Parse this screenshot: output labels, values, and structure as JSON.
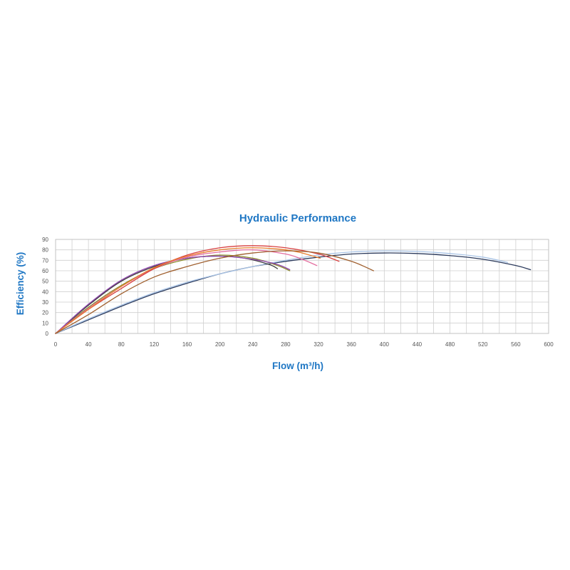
{
  "chart_data": {
    "type": "line",
    "title": "Hydraulic Performance",
    "xlabel": "Flow (m³/h)",
    "ylabel": "Efficiency (%)",
    "xlim": [
      0,
      600
    ],
    "ylim": [
      0,
      90
    ],
    "xticks": [
      0,
      40,
      80,
      120,
      160,
      200,
      240,
      280,
      320,
      360,
      400,
      440,
      480,
      520,
      560,
      600
    ],
    "yticks": [
      0,
      10,
      20,
      30,
      40,
      50,
      60,
      70,
      80,
      90
    ],
    "grid": true,
    "legend": "none",
    "series": [
      {
        "color": "#2b3a5c",
        "x": [
          0,
          40,
          80,
          120,
          160,
          200,
          240,
          280,
          320,
          360,
          400,
          440,
          480,
          520,
          560,
          578
        ],
        "y": [
          0,
          13,
          26,
          38,
          48,
          57,
          64,
          69,
          73,
          76,
          77,
          76.5,
          74.5,
          71,
          65,
          61
        ]
      },
      {
        "color": "#a9c4e6",
        "x": [
          0,
          40,
          80,
          120,
          160,
          200,
          240,
          280,
          320,
          360,
          400,
          440,
          480,
          520,
          550
        ],
        "y": [
          0,
          14,
          27,
          39,
          49,
          57,
          64,
          70,
          75,
          78,
          79,
          78.5,
          76.5,
          73,
          68
        ]
      },
      {
        "color": "#3a3a3a",
        "x": [
          0,
          40,
          80,
          120,
          160,
          200,
          230,
          260,
          270
        ],
        "y": [
          0,
          27,
          50,
          64,
          72,
          74,
          72,
          66,
          62
        ]
      },
      {
        "color": "#8b8b2a",
        "x": [
          0,
          40,
          80,
          120,
          160,
          200,
          240,
          270,
          285
        ],
        "y": [
          0,
          25,
          46,
          62,
          71,
          75,
          72,
          65,
          60
        ]
      },
      {
        "color": "#8e44ad",
        "x": [
          0,
          40,
          80,
          120,
          160,
          200,
          240,
          270,
          285
        ],
        "y": [
          0,
          28,
          51,
          65,
          72,
          74,
          71,
          66,
          61
        ]
      },
      {
        "color": "#e36fa0",
        "x": [
          0,
          40,
          80,
          120,
          160,
          200,
          240,
          280,
          300,
          318
        ],
        "y": [
          0,
          24,
          45,
          62,
          73,
          78,
          80,
          76,
          71,
          65
        ]
      },
      {
        "color": "#d84040",
        "x": [
          0,
          40,
          80,
          120,
          160,
          200,
          240,
          280,
          320,
          345
        ],
        "y": [
          0,
          23,
          43,
          62,
          75,
          82,
          84,
          82,
          76,
          69
        ]
      },
      {
        "color": "#e87e2c",
        "x": [
          0,
          40,
          80,
          120,
          160,
          200,
          240,
          280,
          300,
          322
        ],
        "y": [
          0,
          23,
          45,
          63,
          74,
          80,
          82,
          80,
          77,
          72
        ]
      },
      {
        "color": "#a0602f",
        "x": [
          0,
          40,
          80,
          120,
          160,
          200,
          240,
          280,
          320,
          360,
          387
        ],
        "y": [
          0,
          18,
          38,
          54,
          64,
          72,
          77,
          79,
          77,
          69,
          60
        ]
      }
    ]
  }
}
